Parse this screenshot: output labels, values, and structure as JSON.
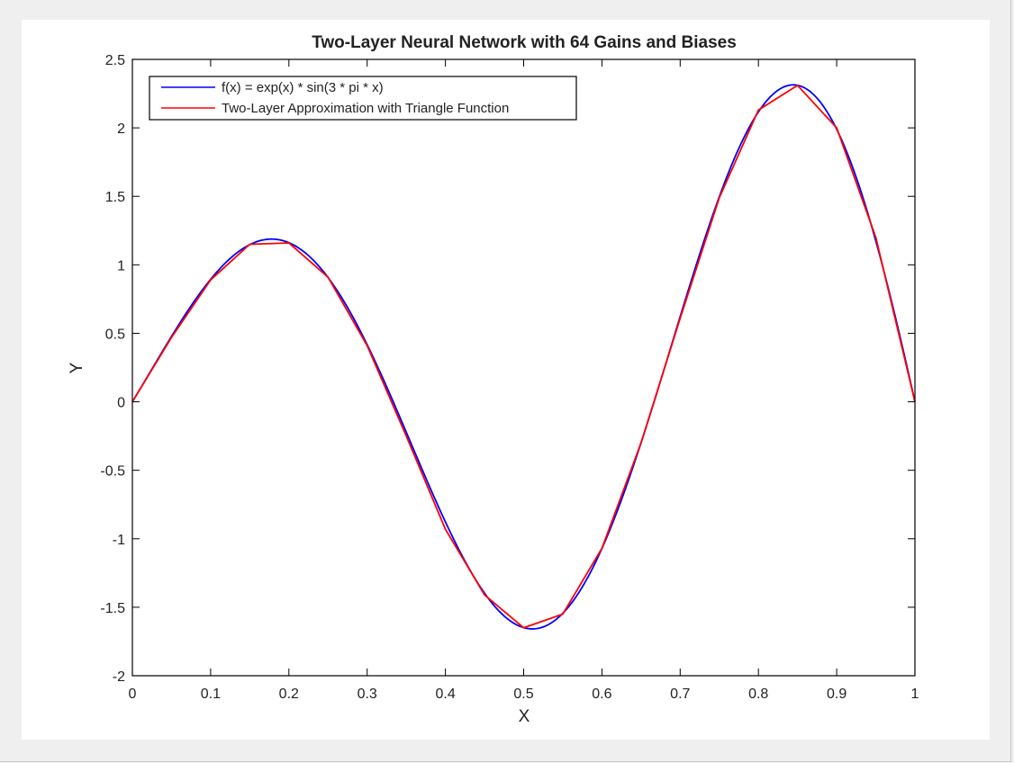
{
  "chart_data": {
    "type": "line",
    "title": "Two-Layer Neural Network with 64 Gains and Biases",
    "xlabel": "X",
    "ylabel": "Y",
    "xlim": [
      0,
      1
    ],
    "ylim": [
      -2,
      2.5
    ],
    "xticks": [
      "0",
      "0.1",
      "0.2",
      "0.3",
      "0.4",
      "0.5",
      "0.6",
      "0.7",
      "0.8",
      "0.9",
      "1"
    ],
    "xtick_values": [
      0,
      0.1,
      0.2,
      0.3,
      0.4,
      0.5,
      0.6,
      0.7,
      0.8,
      0.9,
      1
    ],
    "yticks": [
      "2.5",
      "2",
      "1.5",
      "1",
      "0.5",
      "0",
      "-0.5",
      "-1",
      "-1.5",
      "-2"
    ],
    "ytick_values": [
      2.5,
      2,
      1.5,
      1,
      0.5,
      0,
      -0.5,
      -1,
      -1.5,
      -2
    ],
    "grid": false,
    "legend_position": "top-left",
    "series": [
      {
        "name": "f(x) = exp(x) * sin(3 * pi * x)",
        "color": "#0000ff",
        "function": "exp(x) * sin(3 * pi * x)",
        "x_range": [
          0,
          1
        ]
      },
      {
        "name": "Two-Layer Approximation with Triangle Function",
        "color": "#ff0000",
        "x": [
          0,
          0.05,
          0.1,
          0.15,
          0.2,
          0.25,
          0.3,
          0.35,
          0.4,
          0.45,
          0.5,
          0.55,
          0.6,
          0.65,
          0.7,
          0.75,
          0.8,
          0.85,
          0.9,
          0.95,
          1
        ],
        "y": [
          0,
          0.47,
          0.89,
          1.15,
          1.16,
          0.91,
          0.41,
          -0.25,
          -0.93,
          -1.41,
          -1.65,
          -1.55,
          -1.07,
          -0.3,
          0.61,
          1.49,
          2.13,
          2.31,
          2.0,
          1.2,
          0
        ]
      }
    ]
  }
}
